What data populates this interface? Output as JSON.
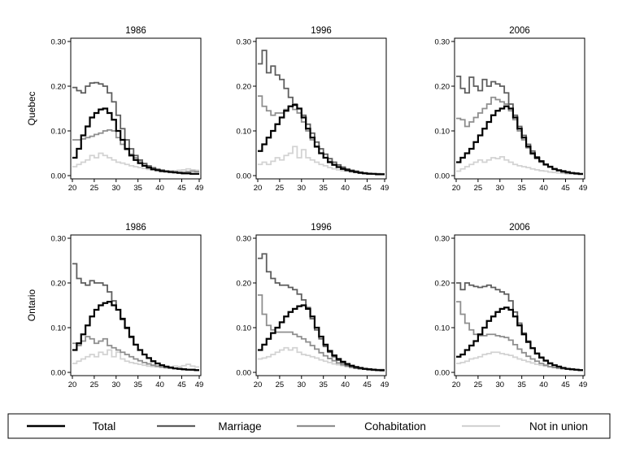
{
  "chart_data": {
    "type": "line",
    "step": true,
    "x_ticks": [
      20,
      25,
      30,
      35,
      40,
      45,
      49
    ],
    "y_ticks": [
      "0.00",
      "0.10",
      "0.20",
      "0.30"
    ],
    "xlim": [
      20,
      49
    ],
    "ylim": [
      0,
      0.3
    ],
    "legend": {
      "position": "bottom",
      "entries": [
        {
          "key": "total",
          "label": "Total",
          "color": "#000000"
        },
        {
          "key": "marriage",
          "label": "Marriage",
          "color": "#5e5e5e"
        },
        {
          "key": "cohab",
          "label": "Cohabitation",
          "color": "#8f8f8f"
        },
        {
          "key": "notunion",
          "label": "Not in union",
          "color": "#d3d3d3"
        }
      ]
    },
    "rows": [
      {
        "label": "Quebec",
        "panels": [
          {
            "title": "1986",
            "series": {
              "total": [
                0.04,
                0.06,
                0.09,
                0.11,
                0.13,
                0.14,
                0.148,
                0.15,
                0.14,
                0.125,
                0.1,
                0.08,
                0.06,
                0.045,
                0.035,
                0.028,
                0.022,
                0.018,
                0.014,
                0.012,
                0.01,
                0.009,
                0.008,
                0.007,
                0.006,
                0.005,
                0.005,
                0.004,
                0.004
              ],
              "marriage": [
                0.197,
                0.19,
                0.185,
                0.2,
                0.207,
                0.208,
                0.205,
                0.2,
                0.185,
                0.165,
                0.135,
                0.105,
                0.08,
                0.06,
                0.045,
                0.035,
                0.027,
                0.021,
                0.017,
                0.013,
                0.011,
                0.009,
                0.008,
                0.007,
                0.006,
                0.005,
                0.005,
                0.004,
                0.004
              ],
              "cohab": [
                0.08,
                0.08,
                0.082,
                0.085,
                0.088,
                0.092,
                0.095,
                0.1,
                0.102,
                0.1,
                0.085,
                0.07,
                0.058,
                0.048,
                0.04,
                0.033,
                0.027,
                0.022,
                0.018,
                0.015,
                0.013,
                0.011,
                0.01,
                0.009,
                0.008,
                0.008,
                0.009,
                0.01,
                0.009
              ],
              "notunion": [
                0.02,
                0.025,
                0.03,
                0.035,
                0.045,
                0.04,
                0.05,
                0.045,
                0.04,
                0.035,
                0.03,
                0.028,
                0.025,
                0.022,
                0.02,
                0.018,
                0.016,
                0.014,
                0.013,
                0.012,
                0.011,
                0.01,
                0.01,
                0.011,
                0.012,
                0.013,
                0.015,
                0.013,
                0.012
              ]
            }
          },
          {
            "title": "1996",
            "series": {
              "total": [
                0.055,
                0.07,
                0.085,
                0.1,
                0.115,
                0.13,
                0.145,
                0.155,
                0.158,
                0.15,
                0.13,
                0.105,
                0.085,
                0.065,
                0.05,
                0.04,
                0.03,
                0.024,
                0.019,
                0.015,
                0.012,
                0.01,
                0.008,
                0.006,
                0.005,
                0.004,
                0.004,
                0.003,
                0.003
              ],
              "marriage": [
                0.25,
                0.28,
                0.23,
                0.245,
                0.225,
                0.215,
                0.195,
                0.175,
                0.16,
                0.15,
                0.135,
                0.115,
                0.095,
                0.075,
                0.06,
                0.048,
                0.038,
                0.03,
                0.024,
                0.019,
                0.015,
                0.012,
                0.01,
                0.008,
                0.006,
                0.005,
                0.004,
                0.004,
                0.003
              ],
              "cohab": [
                0.178,
                0.155,
                0.145,
                0.135,
                0.14,
                0.14,
                0.148,
                0.155,
                0.148,
                0.14,
                0.12,
                0.1,
                0.08,
                0.064,
                0.05,
                0.04,
                0.032,
                0.025,
                0.02,
                0.016,
                0.013,
                0.01,
                0.008,
                0.007,
                0.006,
                0.005,
                0.004,
                0.004,
                0.004
              ],
              "notunion": [
                0.025,
                0.03,
                0.025,
                0.032,
                0.04,
                0.035,
                0.045,
                0.05,
                0.065,
                0.04,
                0.058,
                0.04,
                0.035,
                0.03,
                0.025,
                0.022,
                0.018,
                0.015,
                0.013,
                0.011,
                0.01,
                0.008,
                0.007,
                0.006,
                0.005,
                0.005,
                0.004,
                0.004,
                0.004
              ]
            }
          },
          {
            "title": "2006",
            "series": {
              "total": [
                0.03,
                0.04,
                0.05,
                0.06,
                0.075,
                0.09,
                0.105,
                0.12,
                0.135,
                0.145,
                0.15,
                0.155,
                0.15,
                0.13,
                0.105,
                0.085,
                0.065,
                0.05,
                0.04,
                0.032,
                0.025,
                0.02,
                0.015,
                0.012,
                0.01,
                0.008,
                0.006,
                0.005,
                0.004
              ],
              "marriage": [
                0.222,
                0.195,
                0.185,
                0.22,
                0.2,
                0.19,
                0.215,
                0.2,
                0.21,
                0.205,
                0.2,
                0.185,
                0.16,
                0.135,
                0.11,
                0.09,
                0.07,
                0.055,
                0.042,
                0.033,
                0.025,
                0.019,
                0.014,
                0.011,
                0.008,
                0.006,
                0.005,
                0.004,
                0.003
              ],
              "cohab": [
                0.128,
                0.125,
                0.11,
                0.12,
                0.13,
                0.14,
                0.15,
                0.16,
                0.175,
                0.17,
                0.165,
                0.16,
                0.145,
                0.125,
                0.1,
                0.08,
                0.062,
                0.048,
                0.038,
                0.03,
                0.024,
                0.019,
                0.015,
                0.012,
                0.01,
                0.008,
                0.006,
                0.005,
                0.004
              ],
              "notunion": [
                0.01,
                0.015,
                0.02,
                0.025,
                0.03,
                0.035,
                0.03,
                0.035,
                0.04,
                0.038,
                0.042,
                0.035,
                0.03,
                0.025,
                0.022,
                0.02,
                0.018,
                0.015,
                0.013,
                0.011,
                0.01,
                0.008,
                0.007,
                0.006,
                0.005,
                0.004,
                0.004,
                0.003,
                0.003
              ]
            }
          }
        ]
      },
      {
        "label": "Ontario",
        "panels": [
          {
            "title": "1986",
            "series": {
              "total": [
                0.05,
                0.065,
                0.085,
                0.105,
                0.125,
                0.14,
                0.15,
                0.155,
                0.158,
                0.15,
                0.14,
                0.12,
                0.1,
                0.08,
                0.062,
                0.05,
                0.04,
                0.032,
                0.025,
                0.02,
                0.016,
                0.013,
                0.011,
                0.009,
                0.008,
                0.007,
                0.006,
                0.006,
                0.005
              ],
              "marriage": [
                0.243,
                0.21,
                0.2,
                0.195,
                0.205,
                0.2,
                0.2,
                0.195,
                0.18,
                0.16,
                0.14,
                0.118,
                0.098,
                0.078,
                0.062,
                0.05,
                0.04,
                0.032,
                0.025,
                0.02,
                0.016,
                0.013,
                0.011,
                0.009,
                0.008,
                0.007,
                0.006,
                0.006,
                0.005
              ],
              "cohab": [
                0.065,
                0.06,
                0.07,
                0.08,
                0.075,
                0.065,
                0.07,
                0.075,
                0.06,
                0.055,
                0.05,
                0.045,
                0.04,
                0.035,
                0.03,
                0.026,
                0.022,
                0.019,
                0.016,
                0.014,
                0.012,
                0.01,
                0.009,
                0.008,
                0.007,
                0.006,
                0.006,
                0.005,
                0.005
              ],
              "notunion": [
                0.02,
                0.025,
                0.03,
                0.035,
                0.04,
                0.035,
                0.045,
                0.04,
                0.05,
                0.035,
                0.045,
                0.03,
                0.025,
                0.022,
                0.02,
                0.018,
                0.016,
                0.014,
                0.013,
                0.012,
                0.011,
                0.011,
                0.012,
                0.014,
                0.013,
                0.015,
                0.018,
                0.014,
                0.012
              ]
            }
          },
          {
            "title": "1996",
            "series": {
              "total": [
                0.05,
                0.062,
                0.075,
                0.088,
                0.1,
                0.112,
                0.125,
                0.135,
                0.142,
                0.148,
                0.15,
                0.142,
                0.125,
                0.1,
                0.08,
                0.062,
                0.048,
                0.038,
                0.03,
                0.024,
                0.019,
                0.015,
                0.012,
                0.01,
                0.008,
                0.007,
                0.006,
                0.005,
                0.005
              ],
              "marriage": [
                0.255,
                0.265,
                0.225,
                0.21,
                0.2,
                0.195,
                0.195,
                0.19,
                0.185,
                0.175,
                0.162,
                0.145,
                0.12,
                0.095,
                0.075,
                0.058,
                0.045,
                0.035,
                0.027,
                0.021,
                0.016,
                0.013,
                0.01,
                0.008,
                0.007,
                0.006,
                0.005,
                0.005,
                0.004
              ],
              "cohab": [
                0.173,
                0.13,
                0.105,
                0.095,
                0.09,
                0.09,
                0.09,
                0.09,
                0.085,
                0.08,
                0.075,
                0.068,
                0.06,
                0.052,
                0.044,
                0.037,
                0.031,
                0.026,
                0.021,
                0.017,
                0.014,
                0.011,
                0.009,
                0.008,
                0.007,
                0.006,
                0.005,
                0.005,
                0.004
              ],
              "notunion": [
                0.03,
                0.032,
                0.035,
                0.04,
                0.045,
                0.05,
                0.055,
                0.05,
                0.055,
                0.045,
                0.04,
                0.038,
                0.035,
                0.032,
                0.028,
                0.025,
                0.022,
                0.019,
                0.017,
                0.015,
                0.013,
                0.012,
                0.011,
                0.01,
                0.009,
                0.008,
                0.008,
                0.007,
                0.007
              ]
            }
          },
          {
            "title": "2006",
            "series": {
              "total": [
                0.035,
                0.04,
                0.05,
                0.06,
                0.07,
                0.085,
                0.1,
                0.115,
                0.125,
                0.135,
                0.142,
                0.145,
                0.14,
                0.125,
                0.105,
                0.085,
                0.068,
                0.054,
                0.042,
                0.033,
                0.026,
                0.02,
                0.016,
                0.013,
                0.01,
                0.008,
                0.007,
                0.006,
                0.005
              ],
              "marriage": [
                0.2,
                0.185,
                0.2,
                0.195,
                0.192,
                0.19,
                0.192,
                0.195,
                0.19,
                0.185,
                0.18,
                0.175,
                0.16,
                0.135,
                0.11,
                0.088,
                0.07,
                0.055,
                0.043,
                0.034,
                0.027,
                0.021,
                0.016,
                0.013,
                0.01,
                0.008,
                0.007,
                0.006,
                0.005
              ],
              "cohab": [
                0.158,
                0.13,
                0.11,
                0.095,
                0.085,
                0.082,
                0.082,
                0.085,
                0.085,
                0.082,
                0.08,
                0.078,
                0.072,
                0.062,
                0.052,
                0.044,
                0.036,
                0.03,
                0.025,
                0.02,
                0.016,
                0.013,
                0.011,
                0.009,
                0.008,
                0.007,
                0.006,
                0.005,
                0.005
              ],
              "notunion": [
                0.02,
                0.022,
                0.025,
                0.03,
                0.032,
                0.035,
                0.04,
                0.042,
                0.045,
                0.045,
                0.042,
                0.04,
                0.038,
                0.034,
                0.03,
                0.027,
                0.024,
                0.021,
                0.018,
                0.016,
                0.014,
                0.012,
                0.011,
                0.01,
                0.009,
                0.008,
                0.007,
                0.006,
                0.006
              ]
            }
          }
        ]
      }
    ]
  }
}
